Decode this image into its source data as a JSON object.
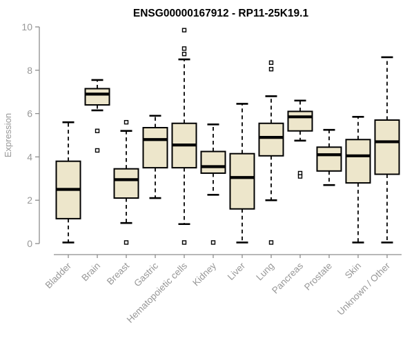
{
  "chart_data": {
    "type": "boxplot",
    "title": "ENSG00000167912 - RP11-25K19.1",
    "ylabel": "Expression",
    "xlabel": "",
    "ylim": [
      0,
      10
    ],
    "yticks": [
      0,
      2,
      4,
      6,
      8,
      10
    ],
    "grid": false,
    "legend": "none",
    "colors": {
      "box_fill": "#EDE6CB",
      "box_stroke": "#000000",
      "median": "#000000",
      "whisker": "#000000",
      "axis_line": "#8C8C8C",
      "tick_text": "#979797",
      "title_text": "#000000",
      "background": "#FFFFFF"
    },
    "categories": [
      "Bladder",
      "Brain",
      "Breast",
      "Gastric",
      "Hematopoietic cells",
      "Kidney",
      "Liver",
      "Lung",
      "Pancreas",
      "Prostate",
      "Skin",
      "Unknown / Other"
    ],
    "boxes": [
      {
        "category": "Bladder",
        "whisker_low": 0.05,
        "q1": 1.15,
        "median": 2.5,
        "q3": 3.8,
        "whisker_high": 5.6,
        "outliers": []
      },
      {
        "category": "Brain",
        "whisker_low": 6.15,
        "q1": 6.4,
        "median": 6.9,
        "q3": 7.15,
        "whisker_high": 7.55,
        "outliers": [
          5.2,
          4.3
        ]
      },
      {
        "category": "Breast",
        "whisker_low": 0.95,
        "q1": 2.1,
        "median": 2.95,
        "q3": 3.45,
        "whisker_high": 5.2,
        "outliers": [
          5.6,
          0.05
        ]
      },
      {
        "category": "Gastric",
        "whisker_low": 2.1,
        "q1": 3.5,
        "median": 4.8,
        "q3": 5.35,
        "whisker_high": 5.9,
        "outliers": []
      },
      {
        "category": "Hematopoietic cells",
        "whisker_low": 0.9,
        "q1": 3.5,
        "median": 4.55,
        "q3": 5.55,
        "whisker_high": 8.5,
        "outliers": [
          9.85,
          9.0,
          8.75,
          0.05
        ]
      },
      {
        "category": "Kidney",
        "whisker_low": 2.25,
        "q1": 3.25,
        "median": 3.55,
        "q3": 4.25,
        "whisker_high": 5.5,
        "outliers": [
          0.05
        ]
      },
      {
        "category": "Liver",
        "whisker_low": 0.05,
        "q1": 1.6,
        "median": 3.05,
        "q3": 4.15,
        "whisker_high": 6.45,
        "outliers": []
      },
      {
        "category": "Lung",
        "whisker_low": 2.0,
        "q1": 4.05,
        "median": 4.9,
        "q3": 5.55,
        "whisker_high": 6.8,
        "outliers": [
          8.35,
          8.05,
          0.05
        ]
      },
      {
        "category": "Pancreas",
        "whisker_low": 4.75,
        "q1": 5.2,
        "median": 5.85,
        "q3": 6.1,
        "whisker_high": 6.6,
        "outliers": [
          3.25,
          3.1
        ]
      },
      {
        "category": "Prostate",
        "whisker_low": 2.7,
        "q1": 3.35,
        "median": 4.1,
        "q3": 4.45,
        "whisker_high": 5.25,
        "outliers": []
      },
      {
        "category": "Skin",
        "whisker_low": 0.05,
        "q1": 2.8,
        "median": 4.05,
        "q3": 4.8,
        "whisker_high": 5.85,
        "outliers": []
      },
      {
        "category": "Unknown / Other",
        "whisker_low": 0.05,
        "q1": 3.2,
        "median": 4.7,
        "q3": 5.7,
        "whisker_high": 8.6,
        "outliers": []
      }
    ]
  }
}
